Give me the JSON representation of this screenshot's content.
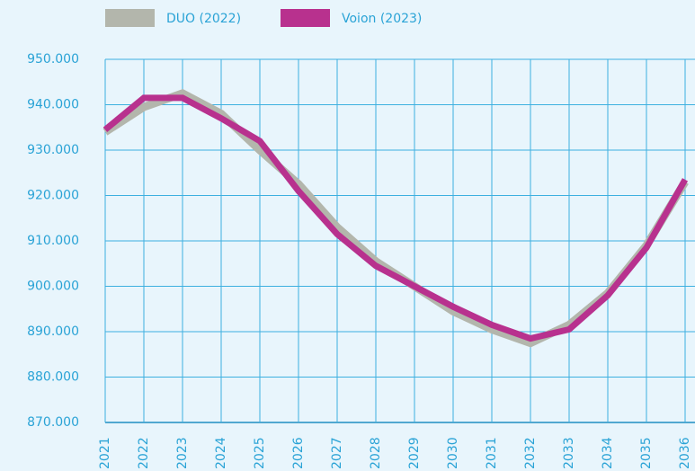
{
  "chart_data": {
    "type": "line",
    "categories": [
      "2021",
      "2022",
      "2023",
      "2024",
      "2025",
      "2026",
      "2027",
      "2028",
      "2029",
      "2030",
      "2031",
      "2032",
      "2033",
      "2034",
      "2035",
      "2036"
    ],
    "series": [
      {
        "name": "DUO (2022)",
        "color": "#b3b6ac",
        "values": [
          934000,
          939500,
          942500,
          938000,
          930000,
          922500,
          913000,
          905500,
          900000,
          894500,
          890500,
          887500,
          891500,
          898500,
          909000,
          923000
        ]
      },
      {
        "name": "Voion (2023)",
        "color": "#b8318e",
        "values": [
          934500,
          941500,
          941500,
          937000,
          932000,
          921000,
          911500,
          904500,
          900000,
          895500,
          891500,
          888500,
          890500,
          898000,
          908500,
          923500
        ]
      }
    ],
    "ylim": [
      870000,
      950000
    ],
    "yticks": [
      {
        "value": 870000,
        "label": "870.000"
      },
      {
        "value": 880000,
        "label": "880.000"
      },
      {
        "value": 890000,
        "label": "890.000"
      },
      {
        "value": 900000,
        "label": "900.000"
      },
      {
        "value": 910000,
        "label": "910.000"
      },
      {
        "value": 920000,
        "label": "920.000"
      },
      {
        "value": 930000,
        "label": "930.000"
      },
      {
        "value": 940000,
        "label": "940.000"
      },
      {
        "value": 950000,
        "label": "950.000"
      }
    ],
    "grid": true
  }
}
